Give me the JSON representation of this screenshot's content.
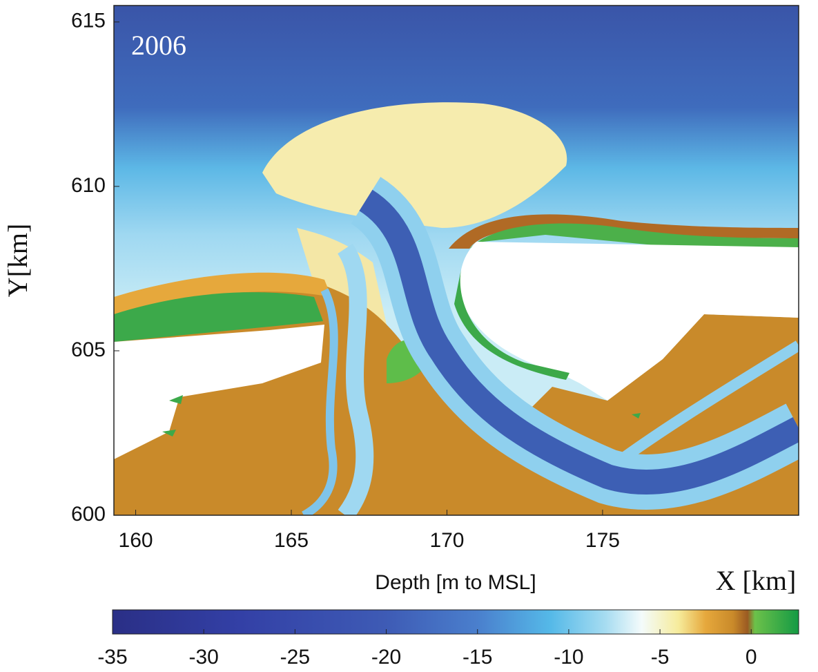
{
  "chart_data": {
    "type": "heatmap",
    "annotation": "2006",
    "xlabel": "X [km]",
    "ylabel": "Y[km]",
    "xlim": [
      159.3,
      181.3
    ],
    "xticks": [
      160,
      165,
      170,
      175
    ],
    "ylim": [
      600,
      615.5
    ],
    "yticks": [
      600,
      605,
      610,
      615
    ],
    "colorbar": {
      "label": "Depth [m to MSL]",
      "lim": [
        -35,
        2.6
      ],
      "ticks": [
        -35,
        -30,
        -25,
        -20,
        -15,
        -10,
        -5,
        0
      ],
      "colormap": [
        {
          "value": -35,
          "color": "#2a2f86"
        },
        {
          "value": -28,
          "color": "#3340a6"
        },
        {
          "value": -20,
          "color": "#3e5bb5"
        },
        {
          "value": -15,
          "color": "#4a7fcd"
        },
        {
          "value": -11,
          "color": "#55b9e8"
        },
        {
          "value": -8,
          "color": "#a6dcf1"
        },
        {
          "value": -6,
          "color": "#f4fbfb"
        },
        {
          "value": -4,
          "color": "#f6ec9c"
        },
        {
          "value": -2.5,
          "color": "#e6a83c"
        },
        {
          "value": -1,
          "color": "#c98a2a"
        },
        {
          "value": -0.2,
          "color": "#9b5a22"
        },
        {
          "value": 0.2,
          "color": "#6cc14a"
        },
        {
          "value": 2.6,
          "color": "#149a44"
        }
      ]
    }
  }
}
